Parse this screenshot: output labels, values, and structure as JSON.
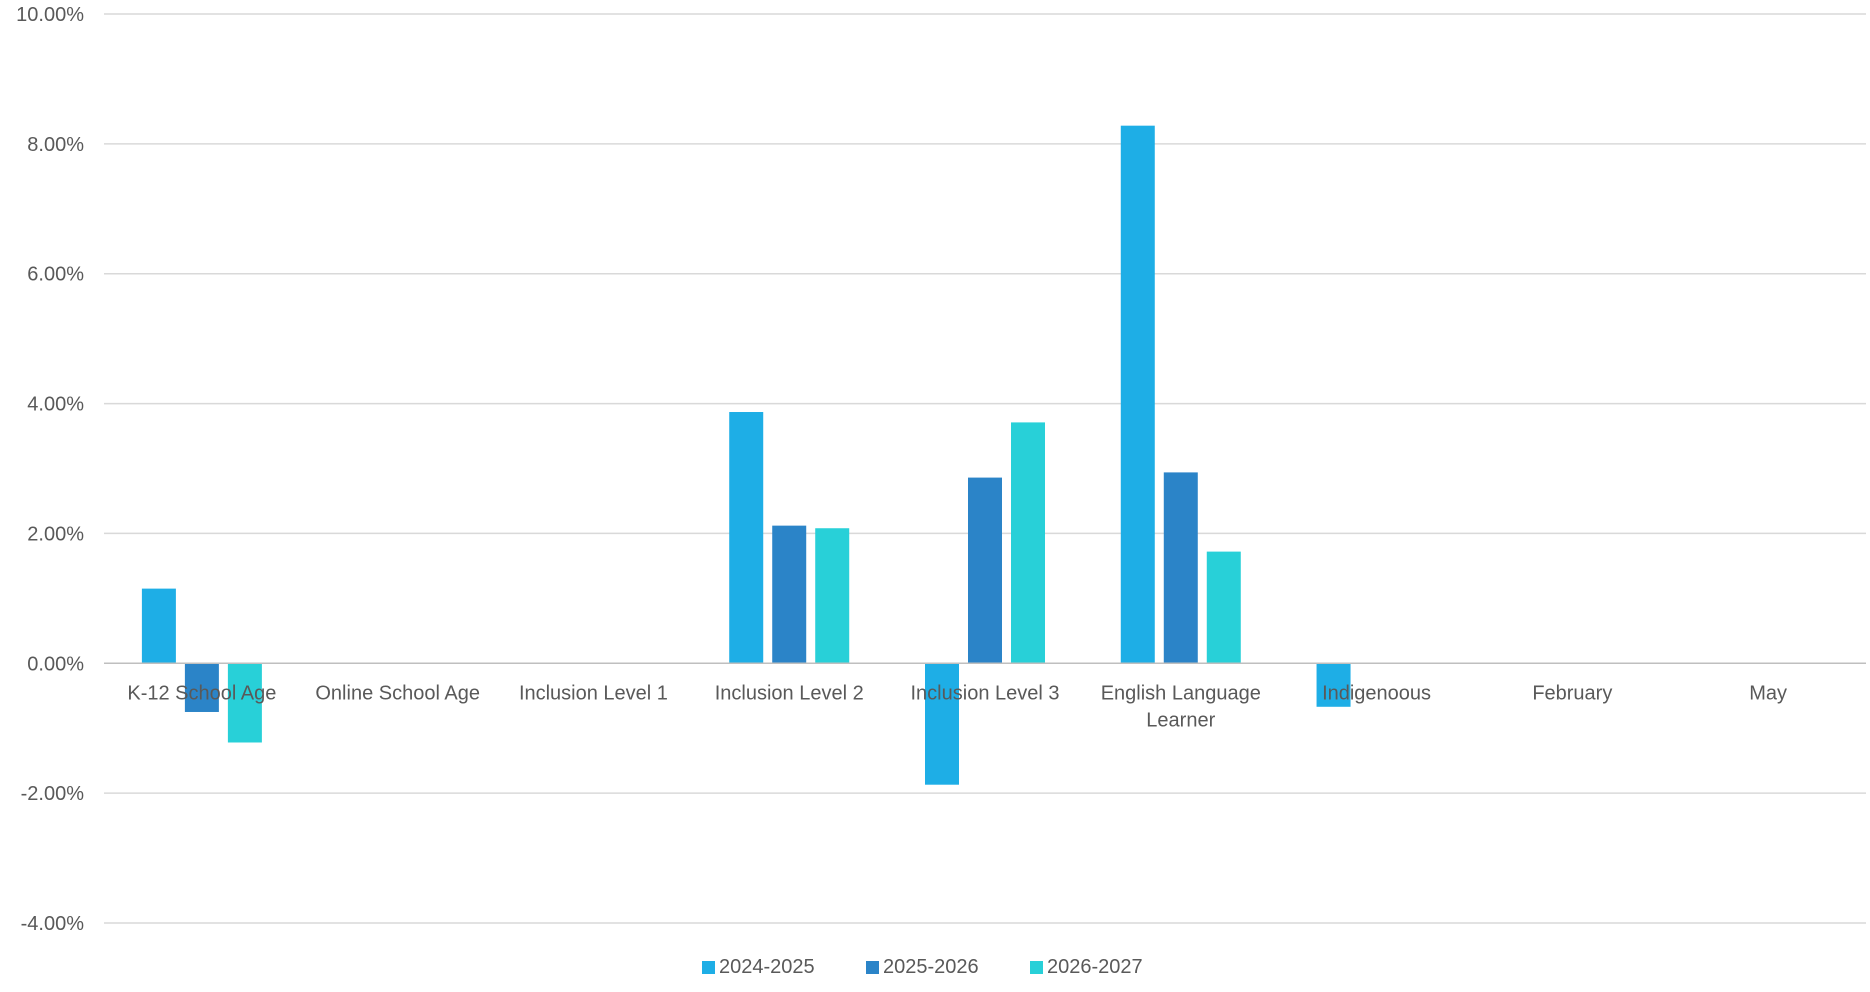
{
  "chart_data": {
    "type": "bar",
    "title": "",
    "xlabel": "",
    "ylabel": "",
    "categories": [
      [
        "K-12 School Age"
      ],
      [
        "Online School Age"
      ],
      [
        "Inclusion Level 1"
      ],
      [
        "Inclusion Level 2"
      ],
      [
        "Inclusion Level 3"
      ],
      [
        "English Language",
        "Learner"
      ],
      [
        "Indigenoous"
      ],
      [
        "February"
      ],
      [
        "May"
      ]
    ],
    "series": [
      {
        "name": "2024-2025",
        "color": "#1eaee6",
        "values": [
          1.15,
          0,
          0,
          3.87,
          -1.87,
          8.28,
          -0.67,
          0,
          0
        ]
      },
      {
        "name": "2025-2026",
        "color": "#2b84c8",
        "values": [
          -0.75,
          0,
          0,
          2.12,
          2.86,
          2.94,
          0,
          0,
          0
        ]
      },
      {
        "name": "2026-2027",
        "color": "#28d0d8",
        "values": [
          -1.22,
          0,
          0,
          2.08,
          3.71,
          1.72,
          0,
          0,
          0
        ]
      }
    ],
    "ylim": [
      -4,
      10
    ],
    "yticks": [
      -4,
      -2,
      0,
      2,
      4,
      6,
      8,
      10
    ],
    "ytick_labels": [
      "-4.00%",
      "-2.00%",
      "0.00%",
      "2.00%",
      "4.00%",
      "6.00%",
      "8.00%",
      "10.00%"
    ],
    "grid": true,
    "legend_position": "bottom",
    "colors": {
      "grid": "#d9d9d9",
      "axis": "#bfbfbf",
      "text": "#595959"
    }
  }
}
